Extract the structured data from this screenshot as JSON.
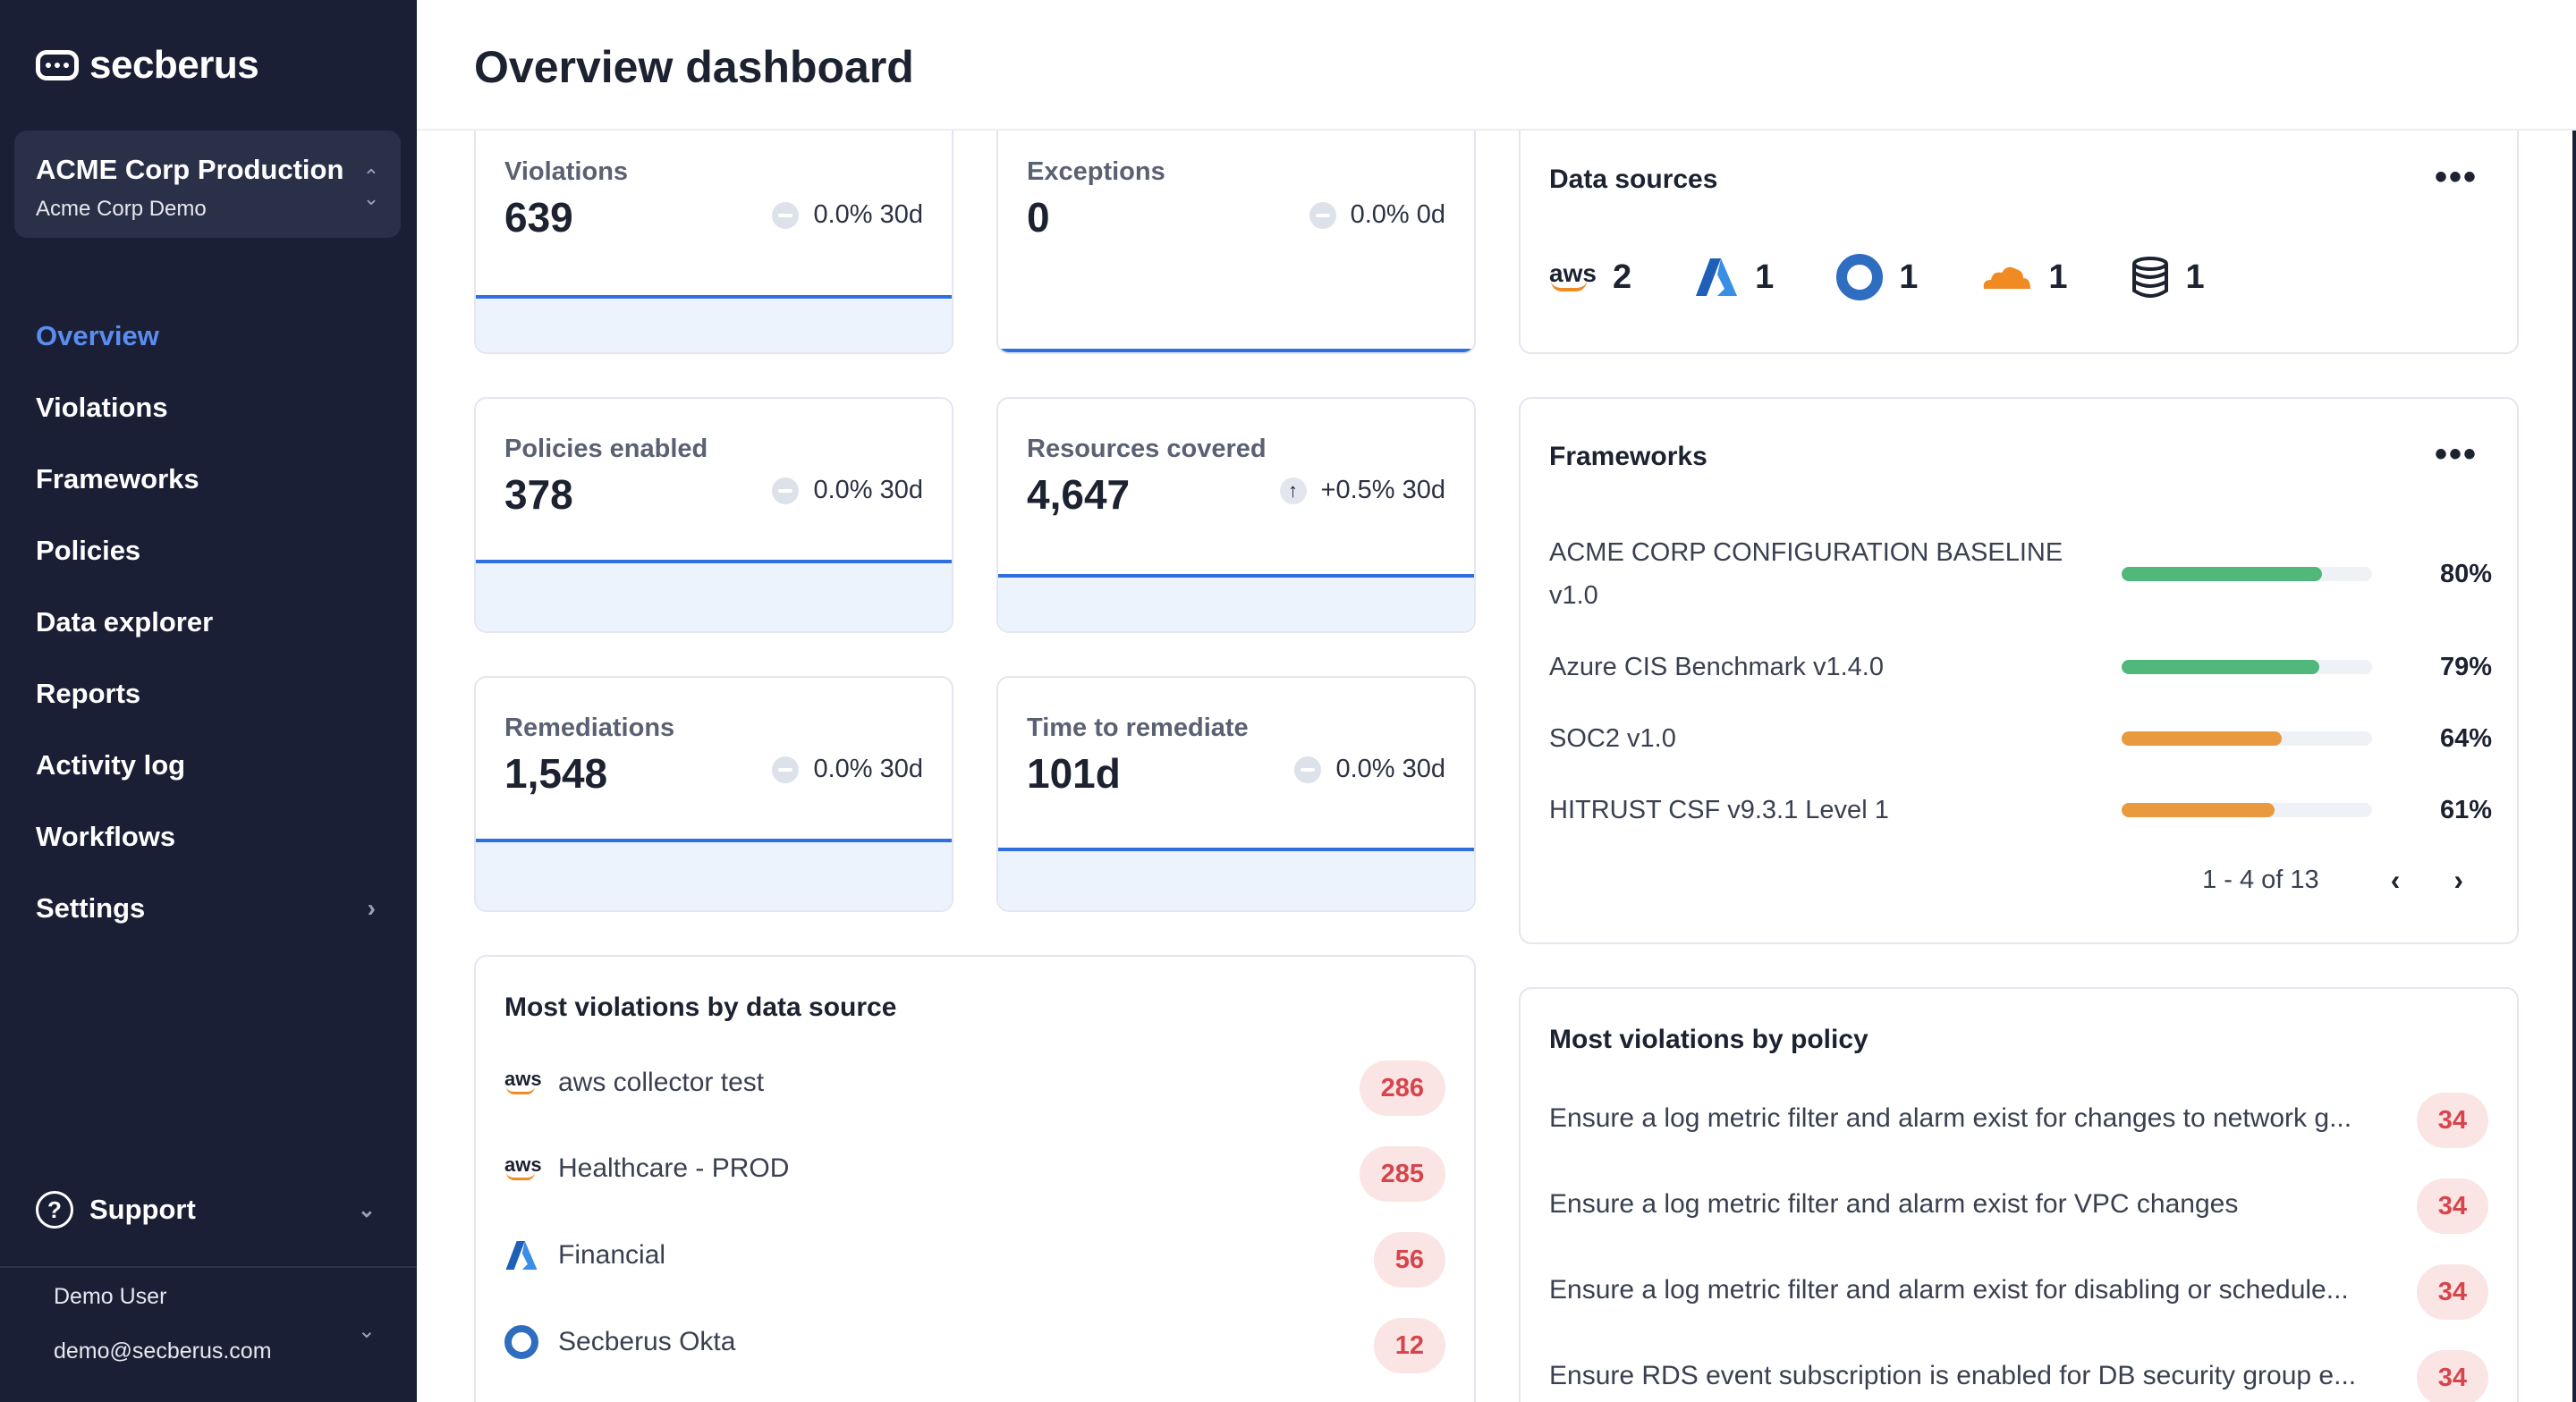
{
  "app": {
    "brand": "secberus",
    "accent": "#5b8def",
    "sidebar_bg": "#1a1f36"
  },
  "org": {
    "name": "ACME Corp Production",
    "sub": "Acme Corp Demo"
  },
  "nav": [
    {
      "label": "Overview",
      "active": true
    },
    {
      "label": "Violations"
    },
    {
      "label": "Frameworks"
    },
    {
      "label": "Policies"
    },
    {
      "label": "Data explorer"
    },
    {
      "label": "Reports"
    },
    {
      "label": "Activity log"
    },
    {
      "label": "Workflows"
    },
    {
      "label": "Settings",
      "has_submenu": true
    }
  ],
  "support": {
    "label": "Support",
    "icon": "?"
  },
  "user": {
    "name": "Demo User",
    "email": "demo@secberus.com"
  },
  "page": {
    "title": "Overview dashboard"
  },
  "stats": {
    "violations": {
      "label": "Violations",
      "value": "639",
      "trend": "0.0% 30d",
      "trend_icon": "neutral"
    },
    "exceptions": {
      "label": "Exceptions",
      "value": "0",
      "trend": "0.0% 0d",
      "trend_icon": "neutral"
    },
    "policies": {
      "label": "Policies enabled",
      "value": "378",
      "trend": "0.0% 30d",
      "trend_icon": "neutral"
    },
    "resources": {
      "label": "Resources covered",
      "value": "4,647",
      "trend": "+0.5% 30d",
      "trend_icon": "up",
      "trend_arrow": "↑"
    },
    "remediations": {
      "label": "Remediations",
      "value": "1,548",
      "trend": "0.0% 30d",
      "trend_icon": "neutral"
    },
    "time": {
      "label": "Time to remediate",
      "value": "101d",
      "trend": "0.0% 30d",
      "trend_icon": "neutral"
    }
  },
  "data_sources": {
    "title": "Data sources",
    "more": "•••",
    "items": [
      {
        "icon": "aws-icon",
        "label": "aws",
        "count": "2"
      },
      {
        "icon": "azure-icon",
        "count": "1"
      },
      {
        "icon": "okta-icon",
        "count": "1"
      },
      {
        "icon": "cloudflare-icon",
        "count": "1"
      },
      {
        "icon": "database-icon",
        "count": "1"
      }
    ]
  },
  "frameworks": {
    "title": "Frameworks",
    "more": "•••",
    "items": [
      {
        "name": "ACME CORP CONFIGURATION BASELINE v1.0",
        "pct": "80%",
        "value": 0.8,
        "color": "#4fb87a"
      },
      {
        "name": "Azure CIS Benchmark v1.4.0",
        "pct": "79%",
        "value": 0.79,
        "color": "#4fb87a"
      },
      {
        "name": "SOC2 v1.0",
        "pct": "64%",
        "value": 0.64,
        "color": "#ea9a3e"
      },
      {
        "name": "HITRUST CSF v9.3.1 Level 1",
        "pct": "61%",
        "value": 0.61,
        "color": "#ea9a3e"
      }
    ],
    "pager": {
      "text": "1 - 4 of 13",
      "prev": "‹",
      "next": "›"
    }
  },
  "by_source": {
    "title": "Most violations by data source",
    "items": [
      {
        "icon": "aws-icon",
        "icon_label": "aws",
        "name": "aws collector test",
        "count": "286"
      },
      {
        "icon": "aws-icon",
        "icon_label": "aws",
        "name": "Healthcare - PROD",
        "count": "285"
      },
      {
        "icon": "azure-icon",
        "name": "Financial",
        "count": "56"
      },
      {
        "icon": "okta-icon",
        "name": "Secberus Okta",
        "count": "12"
      }
    ]
  },
  "by_policy": {
    "title": "Most violations by policy",
    "items": [
      {
        "name": "Ensure a log metric filter and alarm exist for changes to network g...",
        "count": "34"
      },
      {
        "name": "Ensure a log metric filter and alarm exist for VPC changes",
        "count": "34"
      },
      {
        "name": "Ensure a log metric filter and alarm exist for disabling or schedule...",
        "count": "34"
      },
      {
        "name": "Ensure RDS event subscription is enabled for DB security group e...",
        "count": "34"
      }
    ]
  }
}
